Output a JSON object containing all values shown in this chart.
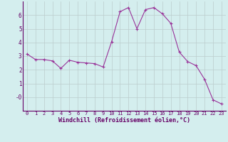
{
  "x": [
    0,
    1,
    2,
    3,
    4,
    5,
    6,
    7,
    8,
    9,
    10,
    11,
    12,
    13,
    14,
    15,
    16,
    17,
    18,
    19,
    20,
    21,
    22,
    23
  ],
  "y": [
    3.15,
    2.75,
    2.75,
    2.65,
    2.1,
    2.7,
    2.55,
    2.5,
    2.45,
    2.2,
    4.05,
    6.25,
    6.55,
    5.0,
    6.4,
    6.55,
    6.1,
    5.4,
    3.3,
    2.6,
    2.3,
    1.3,
    -0.2,
    -0.5
  ],
  "line_color": "#993399",
  "marker": "+",
  "marker_size": 3,
  "xlabel": "Windchill (Refroidissement éolien,°C)",
  "xlim": [
    -0.5,
    23.5
  ],
  "ylim": [
    -1.0,
    7.0
  ],
  "yticks": [
    0,
    1,
    2,
    3,
    4,
    5,
    6
  ],
  "ytick_labels": [
    "-0",
    "1",
    "2",
    "3",
    "4",
    "5",
    "6"
  ],
  "xticks": [
    0,
    1,
    2,
    3,
    4,
    5,
    6,
    7,
    8,
    9,
    10,
    11,
    12,
    13,
    14,
    15,
    16,
    17,
    18,
    19,
    20,
    21,
    22,
    23
  ],
  "bg_color": "#d4eeee",
  "grid_color": "#bbcccc",
  "label_color": "#660066",
  "tick_color": "#660066",
  "font_family": "monospace",
  "xlabel_fontsize": 6.0,
  "tick_fontsize_x": 5.0,
  "tick_fontsize_y": 5.5
}
